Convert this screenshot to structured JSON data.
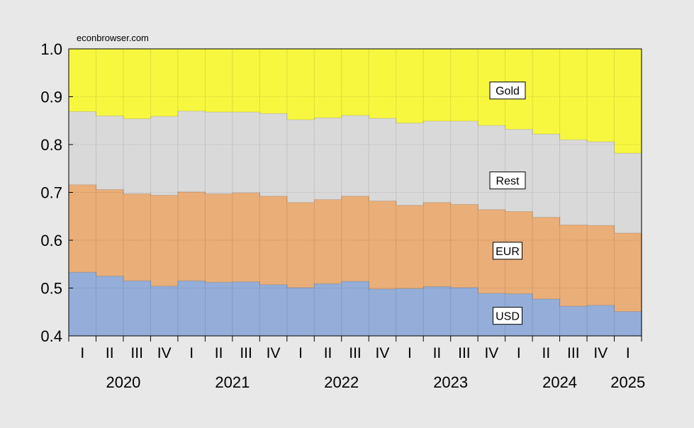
{
  "chart_data": {
    "type": "area",
    "source_note": "econbrowser.com",
    "ylim": [
      0.4,
      1.0
    ],
    "y_ticks": [
      "0.4",
      "0.5",
      "0.6",
      "0.7",
      "0.8",
      "0.9",
      "1.0"
    ],
    "quarters": [
      "I",
      "II",
      "III",
      "IV",
      "I",
      "II",
      "III",
      "IV",
      "I",
      "II",
      "III",
      "IV",
      "I",
      "II",
      "III",
      "IV",
      "I",
      "II",
      "III",
      "IV",
      "I"
    ],
    "years": [
      "2020",
      "2021",
      "2022",
      "2023",
      "2024",
      "2025"
    ],
    "series": [
      {
        "name": "USD",
        "color": "#94aed9",
        "values": [
          0.533,
          0.525,
          0.515,
          0.504,
          0.515,
          0.512,
          0.513,
          0.507,
          0.501,
          0.509,
          0.514,
          0.498,
          0.499,
          0.503,
          0.501,
          0.489,
          0.488,
          0.477,
          0.462,
          0.464,
          0.451
        ]
      },
      {
        "name": "EUR",
        "color": "#eaae78",
        "values": [
          0.716,
          0.706,
          0.697,
          0.694,
          0.701,
          0.697,
          0.699,
          0.692,
          0.679,
          0.685,
          0.692,
          0.682,
          0.673,
          0.679,
          0.675,
          0.664,
          0.66,
          0.648,
          0.632,
          0.631,
          0.615
        ]
      },
      {
        "name": "Rest",
        "color": "#d9d9d9",
        "values": [
          0.869,
          0.86,
          0.854,
          0.859,
          0.87,
          0.868,
          0.868,
          0.865,
          0.852,
          0.856,
          0.861,
          0.855,
          0.845,
          0.849,
          0.849,
          0.84,
          0.832,
          0.822,
          0.81,
          0.806,
          0.782
        ]
      },
      {
        "name": "Gold",
        "color": "#f7f740",
        "values": [
          1.0,
          1.0,
          1.0,
          1.0,
          1.0,
          1.0,
          1.0,
          1.0,
          1.0,
          1.0,
          1.0,
          1.0,
          1.0,
          1.0,
          1.0,
          1.0,
          1.0,
          1.0,
          1.0,
          1.0,
          1.0
        ]
      }
    ],
    "band_labels": [
      {
        "text": "Gold",
        "value": 0.913
      },
      {
        "text": "Rest",
        "value": 0.725
      },
      {
        "text": "EUR",
        "value": 0.578
      },
      {
        "text": "USD",
        "value": 0.442
      }
    ],
    "grid": true
  }
}
